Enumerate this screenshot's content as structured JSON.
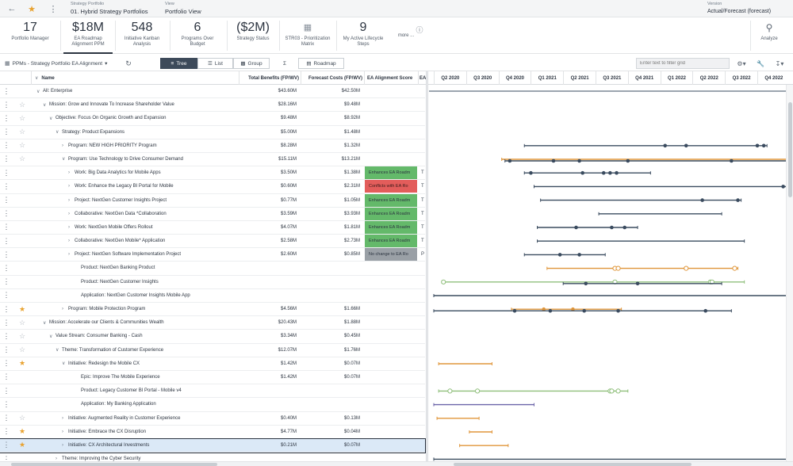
{
  "header": {
    "back_icon": "arrow-left-icon",
    "star_icon": "star-icon",
    "more_icon": "kebab-icon",
    "portfolio_caption": "Strategy Portfolio",
    "portfolio_name": "01. Hybrid Strategy Portfolios",
    "view_caption": "View",
    "view_name": "Portfolio View",
    "version_caption": "Version",
    "version_name": "Actual/Forecast (forecast)"
  },
  "kpis": [
    {
      "value": "17",
      "label1": "Portfolio Manager",
      "label2": ""
    },
    {
      "value": "$18M",
      "label1": "EA Roadmap",
      "label2": "Alignment PPM"
    },
    {
      "value": "548",
      "label1": "Initiative Kanban",
      "label2": "Analysis"
    },
    {
      "value": "6",
      "label1": "Programs Over",
      "label2": "Budget"
    },
    {
      "value": "($2M)",
      "label1": "Strategy Status",
      "label2": ""
    },
    {
      "value": "",
      "label1": "STR03 - Prioritization",
      "label2": "Matrix"
    },
    {
      "value": "9",
      "label1": "My Active Lifecycle",
      "label2": "Steps"
    },
    {
      "value": "",
      "label1": "more ...",
      "label2": ""
    },
    {
      "value": "",
      "label1": "Analyze",
      "label2": ""
    }
  ],
  "toolbar": {
    "grid_title": "PPMs - Strategy Portfolio EA Alignment",
    "tree_label": "Tree",
    "list_label": "List",
    "group_label": "Group",
    "sum_label": "Σ",
    "roadmap_label": "Roadmap",
    "filter_placeholder": "Enter text to filter grid"
  },
  "columns": {
    "name": "Name",
    "benefits": "Total Benefits (FP/WV)",
    "costs": "Forecast Costs (FP/WV)",
    "ea": "EA Alignment Score",
    "extra": "EA"
  },
  "quarters": [
    "Q2 2020",
    "Q3 2020",
    "Q4 2020",
    "Q1 2021",
    "Q2 2021",
    "Q3 2021",
    "Q4 2021",
    "Q1 2022",
    "Q2 2022",
    "Q3 2022",
    "Q4 2022"
  ],
  "colors": {
    "green": "#64b96a",
    "red": "#e35d5b",
    "gray": "#9aa0a6",
    "navy": "#3a4b5f",
    "orange": "#e0963a",
    "sage": "#8fbf7b",
    "purple": "#6b63a8",
    "star": "#e8a22f"
  },
  "rows": [
    {
      "indent": 0,
      "caret": "v",
      "star": "none",
      "name": "All: Enterprise",
      "benefits": "$43.60M",
      "costs": "$42.50M",
      "ea": "",
      "ea_color": "",
      "extra": ""
    },
    {
      "indent": 1,
      "caret": "v",
      "star": "empty",
      "name": "Mission: Grow and Innovate To Increase Shareholder Value",
      "benefits": "$28.16M",
      "costs": "$9.48M",
      "ea": "",
      "ea_color": "",
      "extra": ""
    },
    {
      "indent": 2,
      "caret": "v",
      "star": "empty",
      "name": "Objective: Focus On Organic Growth and Expansion",
      "benefits": "$9.48M",
      "costs": "$8.92M",
      "ea": "",
      "ea_color": "",
      "extra": ""
    },
    {
      "indent": 3,
      "caret": "v",
      "star": "empty",
      "name": "Strategy: Product Expansions",
      "benefits": "$5.00M",
      "costs": "$1.48M",
      "ea": "",
      "ea_color": "",
      "extra": ""
    },
    {
      "indent": 4,
      "caret": ">",
      "star": "empty",
      "name": "Program: NEW HIGH PRIORITY Program",
      "benefits": "$8.28M",
      "costs": "$1.32M",
      "ea": "",
      "ea_color": "",
      "extra": ""
    },
    {
      "indent": 4,
      "caret": "v",
      "star": "empty",
      "name": "Program: Use Technology to Drive Consumer Demand",
      "benefits": "$15.11M",
      "costs": "$13.21M",
      "ea": "",
      "ea_color": "",
      "extra": ""
    },
    {
      "indent": 5,
      "caret": ">",
      "star": "none",
      "name": "Work: Big Data Analytics for Mobile Apps",
      "benefits": "$3.50M",
      "costs": "$1.38M",
      "ea": "Enhances EA Roadm",
      "ea_color": "green",
      "extra": "T"
    },
    {
      "indent": 5,
      "caret": ">",
      "star": "none",
      "name": "Work: Enhance the Legacy BI Portal for Mobile",
      "benefits": "$0.60M",
      "costs": "$2.31M",
      "ea": "Conflicts with EA Ro",
      "ea_color": "red",
      "extra": "T"
    },
    {
      "indent": 5,
      "caret": ">",
      "star": "none",
      "name": "Project: NextGen Customer Insights Project",
      "benefits": "$0.77M",
      "costs": "$1.05M",
      "ea": "Enhances EA Roadm",
      "ea_color": "green",
      "extra": "T"
    },
    {
      "indent": 5,
      "caret": ">",
      "star": "none",
      "name": "Collaborative: NextGen Data *Collaboration",
      "benefits": "$3.59M",
      "costs": "$3.93M",
      "ea": "Enhances EA Roadm",
      "ea_color": "green",
      "extra": "T"
    },
    {
      "indent": 5,
      "caret": ">",
      "star": "none",
      "name": "Work: NextGen Mobile Offers Rollout",
      "benefits": "$4.07M",
      "costs": "$1.81M",
      "ea": "Enhances EA Roadm",
      "ea_color": "green",
      "extra": "T"
    },
    {
      "indent": 5,
      "caret": ">",
      "star": "none",
      "name": "Collaborative: NextGen Mobile* Application",
      "benefits": "$2.58M",
      "costs": "$2.73M",
      "ea": "Enhances EA Roadm",
      "ea_color": "green",
      "extra": "T"
    },
    {
      "indent": 5,
      "caret": ">",
      "star": "none",
      "name": "Project: NextGen Software Implementation Project",
      "benefits": "$2.60M",
      "costs": "$0.85M",
      "ea": "No change to EA Ro",
      "ea_color": "gray",
      "extra": "P"
    },
    {
      "indent": 6,
      "caret": "",
      "star": "none",
      "name": "Product: NextGen Banking Product",
      "benefits": "",
      "costs": "",
      "ea": "",
      "ea_color": "",
      "extra": ""
    },
    {
      "indent": 6,
      "caret": "",
      "star": "none",
      "name": "Product: NextGen Customer Insights",
      "benefits": "",
      "costs": "",
      "ea": "",
      "ea_color": "",
      "extra": ""
    },
    {
      "indent": 6,
      "caret": "",
      "star": "none",
      "name": "Application: NextGen Customer Insights Mobile App",
      "benefits": "",
      "costs": "",
      "ea": "",
      "ea_color": "",
      "extra": ""
    },
    {
      "indent": 4,
      "caret": ">",
      "star": "filled",
      "name": "Program: Mobile Protection Program",
      "benefits": "$4.56M",
      "costs": "$1.66M",
      "ea": "",
      "ea_color": "",
      "extra": ""
    },
    {
      "indent": 1,
      "caret": "v",
      "star": "empty",
      "name": "Mission: Accelerate our Clients & Communities Wealth",
      "benefits": "$20.43M",
      "costs": "$1.88M",
      "ea": "",
      "ea_color": "",
      "extra": ""
    },
    {
      "indent": 2,
      "caret": "v",
      "star": "empty",
      "name": "Value Stream: Consumer Banking - Cash",
      "benefits": "$3.34M",
      "costs": "$0.45M",
      "ea": "",
      "ea_color": "",
      "extra": ""
    },
    {
      "indent": 3,
      "caret": "v",
      "star": "empty",
      "name": "Theme: Transformation of Customer Experience",
      "benefits": "$12.07M",
      "costs": "$1.76M",
      "ea": "",
      "ea_color": "",
      "extra": ""
    },
    {
      "indent": 4,
      "caret": "v",
      "star": "filled",
      "name": "Initiative: Redesign the Mobile CX",
      "benefits": "$1.42M",
      "costs": "$0.07M",
      "ea": "",
      "ea_color": "",
      "extra": ""
    },
    {
      "indent": 6,
      "caret": "",
      "star": "none",
      "name": "Epic: Improve The Mobile Experience",
      "benefits": "$1.42M",
      "costs": "$0.07M",
      "ea": "",
      "ea_color": "",
      "extra": ""
    },
    {
      "indent": 6,
      "caret": "",
      "star": "none",
      "name": "Product: Legacy Customer BI Portal - Mobile v4",
      "benefits": "",
      "costs": "",
      "ea": "",
      "ea_color": "",
      "extra": ""
    },
    {
      "indent": 6,
      "caret": "",
      "star": "none",
      "name": "Application: My Banking Application",
      "benefits": "",
      "costs": "",
      "ea": "",
      "ea_color": "",
      "extra": ""
    },
    {
      "indent": 4,
      "caret": ">",
      "star": "empty",
      "name": "Initiative: Augmented Reality in Customer Experience",
      "benefits": "$0.40M",
      "costs": "$0.13M",
      "ea": "",
      "ea_color": "",
      "extra": ""
    },
    {
      "indent": 4,
      "caret": ">",
      "star": "filled",
      "name": "Initiative: Embrace the CX Disruption",
      "benefits": "$4.77M",
      "costs": "$0.04M",
      "ea": "",
      "ea_color": "",
      "extra": ""
    },
    {
      "indent": 4,
      "caret": ">",
      "star": "filled",
      "name": "Initiative: CX Architectural Investments",
      "benefits": "$0.21M",
      "costs": "$0.07M",
      "ea": "",
      "ea_color": "",
      "extra": "",
      "selected": true
    },
    {
      "indent": 3,
      "caret": ">",
      "star": "none",
      "name": "Theme: Improving the Cyber Security",
      "benefits": "",
      "costs": "",
      "ea": "",
      "ea_color": "",
      "extra": ""
    }
  ],
  "gantt_bars": [
    {
      "row": 0,
      "color": "navy",
      "start": "Q2 2020",
      "end": "Q4 2022",
      "full": true,
      "markers": []
    },
    {
      "row": 4,
      "color": "navy",
      "start": "Q3 2020",
      "end": "Q4 2022",
      "markers": [
        {
          "q": 7.15,
          "type": "dot"
        },
        {
          "q": 7.8,
          "type": "dot"
        },
        {
          "q": 10.0,
          "type": "dot"
        },
        {
          "q": 10.2,
          "type": "dot"
        }
      ],
      "span": [
        2.8,
        10.3
      ]
    },
    {
      "row": 5,
      "color": "orange",
      "span": [
        2.1,
        11.5
      ],
      "markers": []
    },
    {
      "row": 5,
      "color": "navy",
      "span": [
        2.2,
        11.5
      ],
      "markers": [
        {
          "q": 2.35,
          "type": "dot"
        },
        {
          "q": 3.7,
          "type": "dot"
        },
        {
          "q": 4.5,
          "type": "dot"
        },
        {
          "q": 6.0,
          "type": "dot"
        },
        {
          "q": 9.2,
          "type": "dot"
        }
      ],
      "offset": 2
    },
    {
      "row": 6,
      "color": "navy",
      "span": [
        2.8,
        6.7
      ],
      "markers": [
        {
          "q": 3.0,
          "type": "dot"
        },
        {
          "q": 4.6,
          "type": "dot"
        },
        {
          "q": 5.25,
          "type": "dot"
        },
        {
          "q": 5.45,
          "type": "dot"
        },
        {
          "q": 5.65,
          "type": "dot"
        }
      ]
    },
    {
      "row": 7,
      "color": "navy",
      "span": [
        3.1,
        11.6
      ],
      "markers": [
        {
          "q": 10.8,
          "type": "dot"
        }
      ]
    },
    {
      "row": 8,
      "color": "navy",
      "span": [
        3.3,
        9.5
      ],
      "markers": [
        {
          "q": 8.3,
          "type": "dot"
        },
        {
          "q": 9.4,
          "type": "dot"
        }
      ]
    },
    {
      "row": 9,
      "color": "navy",
      "span": [
        5.1,
        8.9
      ],
      "markers": []
    },
    {
      "row": 10,
      "color": "navy",
      "span": [
        3.2,
        6.3
      ],
      "markers": [
        {
          "q": 4.4,
          "type": "dot"
        },
        {
          "q": 5.5,
          "type": "dot"
        },
        {
          "q": 5.9,
          "type": "dot"
        }
      ]
    },
    {
      "row": 11,
      "color": "navy",
      "span": [
        3.2,
        9.6
      ],
      "markers": []
    },
    {
      "row": 12,
      "color": "navy",
      "span": [
        2.8,
        5.3
      ],
      "markers": [
        {
          "q": 3.9,
          "type": "dot"
        },
        {
          "q": 4.5,
          "type": "dot"
        }
      ]
    },
    {
      "row": 13,
      "color": "orange",
      "span": [
        3.5,
        9.4
      ],
      "markers": [
        {
          "q": 5.6,
          "type": "ring"
        },
        {
          "q": 5.7,
          "type": "ring"
        },
        {
          "q": 7.8,
          "type": "ring"
        },
        {
          "q": 9.3,
          "type": "ring"
        }
      ]
    },
    {
      "row": 14,
      "color": "sage",
      "span": [
        0.25,
        9.6
      ],
      "markers": [
        {
          "q": 0.3,
          "type": "ring"
        },
        {
          "q": 5.6,
          "type": "ring"
        },
        {
          "q": 8.55,
          "type": "ring"
        },
        {
          "q": 8.6,
          "type": "ring"
        }
      ]
    },
    {
      "row": 14,
      "color": "navy",
      "span": [
        4.0,
        8.9
      ],
      "markers": [
        {
          "q": 4.7,
          "type": "dot"
        },
        {
          "q": 6.3,
          "type": "dot"
        }
      ],
      "offset": 2
    },
    {
      "row": 15,
      "color": "navy",
      "span": [
        0.0,
        11.9
      ],
      "markers": []
    },
    {
      "row": 16,
      "color": "orange",
      "span": [
        2.4,
        5.8
      ],
      "markers": [
        {
          "q": 3.4,
          "type": "dot"
        },
        {
          "q": 4.3,
          "type": "dot"
        }
      ]
    },
    {
      "row": 16,
      "color": "navy",
      "span": [
        0.0,
        9.2
      ],
      "markers": [
        {
          "q": 2.5,
          "type": "dot"
        },
        {
          "q": 3.6,
          "type": "dot"
        },
        {
          "q": 4.65,
          "type": "dot"
        },
        {
          "q": 5.7,
          "type": "dot"
        },
        {
          "q": 8.4,
          "type": "dot"
        }
      ],
      "offset": 2
    },
    {
      "row": 20,
      "color": "orange",
      "span": [
        0.15,
        1.8
      ],
      "markers": []
    },
    {
      "row": 22,
      "color": "sage",
      "span": [
        0.15,
        6.0
      ],
      "markers": [
        {
          "q": 0.5,
          "type": "ring"
        },
        {
          "q": 1.35,
          "type": "ring"
        },
        {
          "q": 5.45,
          "type": "ring"
        },
        {
          "q": 5.5,
          "type": "ring"
        },
        {
          "q": 5.7,
          "type": "ring"
        }
      ]
    },
    {
      "row": 23,
      "color": "purple",
      "span": [
        0.0,
        3.1
      ],
      "markers": []
    },
    {
      "row": 24,
      "color": "orange",
      "span": [
        0.1,
        1.4
      ],
      "markers": []
    },
    {
      "row": 25,
      "color": "orange",
      "span": [
        1.1,
        1.8
      ],
      "markers": []
    },
    {
      "row": 26,
      "color": "orange",
      "span": [
        0.8,
        2.3
      ],
      "markers": []
    },
    {
      "row": 27,
      "color": "navy",
      "span": [
        0.0,
        11.9
      ],
      "markers": []
    }
  ]
}
